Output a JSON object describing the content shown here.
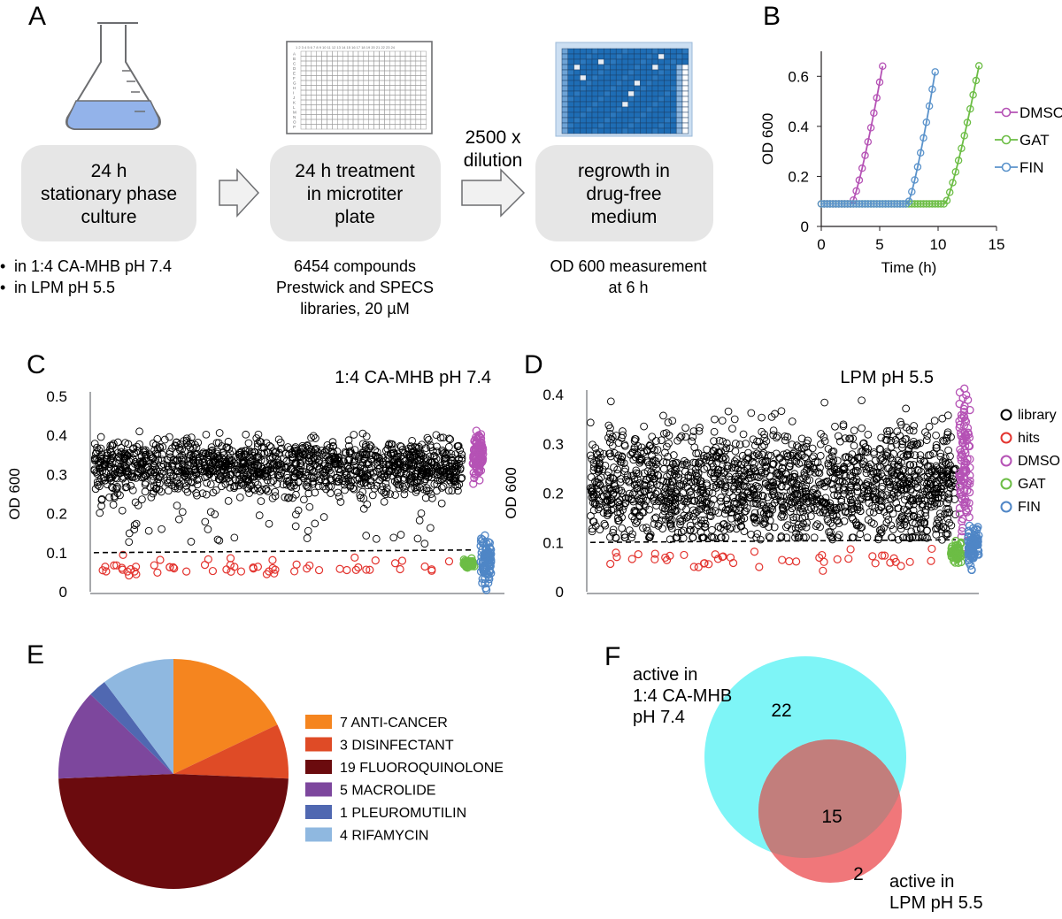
{
  "panels": {
    "a": "A",
    "b": "B",
    "c": "C",
    "d": "D",
    "e": "E",
    "f": "F"
  },
  "workflow": {
    "box1": [
      "24 h",
      "stationary phase",
      "culture"
    ],
    "box2": [
      "24 h treatment",
      "in microtiter",
      "plate"
    ],
    "box3": [
      "regrowth in",
      "drug-free",
      "medium"
    ],
    "dilution": [
      "2500 x",
      "dilution"
    ],
    "media_bullets": [
      "in 1:4 CA-MHB pH 7.4",
      "in LPM pH 5.5"
    ],
    "library_note": [
      "6454 compounds",
      "Prestwick and SPECS",
      "libraries,  20 µM"
    ],
    "readout_note": [
      "OD 600 measurement",
      "at 6 h"
    ],
    "plate_rows": [
      "A",
      "B",
      "C",
      "D",
      "E",
      "F",
      "G",
      "H",
      "I",
      "J",
      "K",
      "L",
      "M",
      "N",
      "O",
      "P"
    ],
    "plate_cols": "1 2 3 4 5 6 7 8 9 10 11 12 13 14 15 16 17 18 19 20 21 22 23 24"
  },
  "chart_data": [
    {
      "panel": "B",
      "type": "line",
      "xlabel": "Time (h)",
      "ylabel": "OD 600",
      "xlim": [
        0,
        15
      ],
      "ylim": [
        0,
        0.7
      ],
      "xticks": [
        0,
        5,
        10,
        15
      ],
      "yticks": [
        0,
        0.2,
        0.4,
        0.6
      ],
      "xtick_labels": [
        "0",
        "5",
        "10",
        "15"
      ],
      "ytick_labels": [
        "0",
        "0.2",
        "0.4",
        "0.6"
      ],
      "series": [
        {
          "name": "DMSO",
          "color": "#b552b5",
          "lag_end_h": 2.6,
          "max_h": 5.4,
          "baseline": 0.09,
          "max_od": 0.68
        },
        {
          "name": "GAT",
          "color": "#6cbd45",
          "lag_end_h": 10.6,
          "max_h": 13.7,
          "baseline": 0.09,
          "max_od": 0.69
        },
        {
          "name": "FIN",
          "color": "#5b93cb",
          "lag_end_h": 7.4,
          "max_h": 9.9,
          "baseline": 0.09,
          "max_od": 0.66
        }
      ]
    },
    {
      "panel": "C",
      "type": "scatter",
      "title": "1:4 CA-MHB pH 7.4",
      "ylabel": "OD 600",
      "ylim": [
        0,
        0.5
      ],
      "hit_threshold": 0.1,
      "yticks": [
        0,
        0.1,
        0.2,
        0.3,
        0.4,
        0.5
      ],
      "ytick_labels": [
        "0",
        "0.1",
        "0.2",
        "0.3",
        "0.4",
        "0.5"
      ],
      "groups": [
        {
          "name": "library",
          "color": "#000000",
          "center": 0.32,
          "spread": 0.035
        },
        {
          "name": "hits",
          "color": "#e3342f",
          "center": 0.065,
          "spread": 0.01
        },
        {
          "name": "DMSO",
          "color": "#b552b5",
          "center": 0.35,
          "spread": 0.03
        },
        {
          "name": "GAT",
          "color": "#6cbd45",
          "center": 0.07,
          "spread": 0.005
        },
        {
          "name": "FIN",
          "color": "#4f86c6",
          "center": 0.08,
          "spread": 0.03
        }
      ]
    },
    {
      "panel": "D",
      "type": "scatter",
      "title": "LPM pH 5.5",
      "ylabel": "OD 600",
      "ylim": [
        0,
        0.4
      ],
      "hit_threshold": 0.1,
      "yticks": [
        0,
        0.1,
        0.2,
        0.3,
        0.4
      ],
      "ytick_labels": [
        "0",
        "0.1",
        "0.2",
        "0.3",
        "0.4"
      ],
      "legend": [
        "library",
        "hits",
        "DMSO",
        "GAT",
        "FIN"
      ],
      "groups": [
        {
          "name": "library",
          "color": "#000000",
          "center": 0.22,
          "spread": 0.06
        },
        {
          "name": "hits",
          "color": "#e3342f",
          "center": 0.065,
          "spread": 0.01
        },
        {
          "name": "DMSO",
          "color": "#b552b5",
          "center": 0.26,
          "spread": 0.07
        },
        {
          "name": "GAT",
          "color": "#6cbd45",
          "center": 0.08,
          "spread": 0.01
        },
        {
          "name": "FIN",
          "color": "#4f86c6",
          "center": 0.09,
          "spread": 0.02
        }
      ]
    },
    {
      "panel": "E",
      "type": "pie",
      "categories": [
        "ANTI-CANCER",
        "DISINFECTANT",
        "FLUOROQUINOLONE",
        "MACROLIDE",
        "PLEUROMUTILIN",
        "RIFAMYCIN"
      ],
      "values": [
        7,
        3,
        19,
        5,
        1,
        4
      ],
      "labels": [
        "7 ANTI-CANCER",
        "3 DISINFECTANT",
        "19 FLUOROQUINOLONE",
        "5 MACROLIDE",
        "1 PLEUROMUTILIN",
        "4 RIFAMYCIN"
      ],
      "colors": [
        "#f5851f",
        "#df4b26",
        "#6b0b0e",
        "#7d479d",
        "#5068b1",
        "#8fb8e0"
      ]
    },
    {
      "panel": "F",
      "type": "venn",
      "sets": [
        {
          "name": "active in 1:4 CA-MHB pH 7.4",
          "label_lines": [
            "active in",
            "1:4 CA-MHB",
            "pH 7.4"
          ],
          "only": 22,
          "color": "#7ef5f7"
        },
        {
          "name": "active in LPM pH 5.5",
          "label_lines": [
            "active in",
            "LPM pH 5.5"
          ],
          "only": 2,
          "color": "#f0777a"
        }
      ],
      "overlap": 15,
      "overlap_color": "#c27e7c"
    }
  ]
}
